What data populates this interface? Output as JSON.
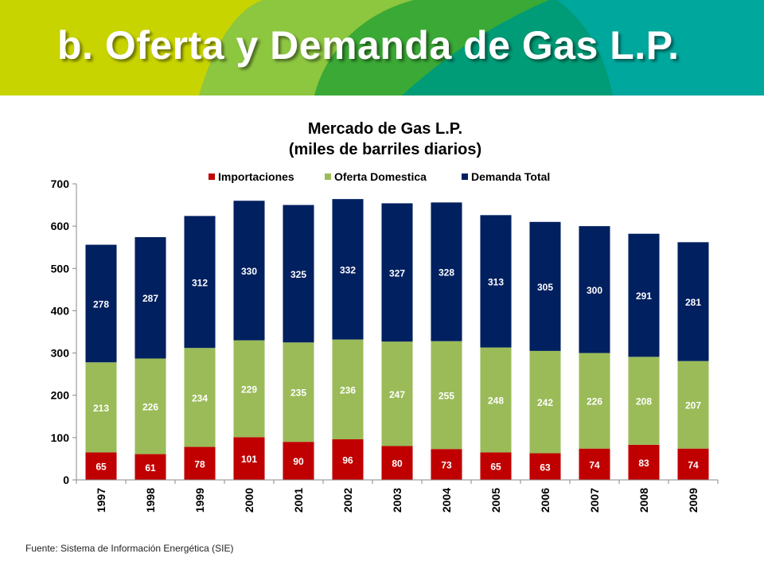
{
  "slide": {
    "title": "b. Oferta y Demanda de Gas L.P.",
    "source": "Fuente: Sistema de Información Energética (SIE)"
  },
  "colors": {
    "importaciones": "#C00000",
    "oferta": "#9BBB59",
    "demanda": "#002060",
    "banner": [
      "#C8D400",
      "#8DC63F",
      "#3AA935",
      "#009B77",
      "#00A79D"
    ]
  },
  "chart_data": {
    "type": "bar",
    "stacked": true,
    "title": "Mercado de Gas L.P.",
    "subtitle": "(miles de barriles diarios)",
    "xlabel": "",
    "ylabel": "",
    "ylim": [
      0,
      700
    ],
    "yticks": [
      0,
      100,
      200,
      300,
      400,
      500,
      600,
      700
    ],
    "legend_position": "top",
    "grid": false,
    "categories": [
      "1997",
      "1998",
      "1999",
      "2000",
      "2001",
      "2002",
      "2003",
      "2004",
      "2005",
      "2006",
      "2007",
      "2008",
      "2009"
    ],
    "series": [
      {
        "name": "Importaciones",
        "values": [
          65,
          61,
          78,
          101,
          90,
          96,
          80,
          73,
          65,
          63,
          74,
          83,
          74
        ]
      },
      {
        "name": "Oferta Domestica",
        "values": [
          213,
          226,
          234,
          229,
          235,
          236,
          247,
          255,
          248,
          242,
          226,
          208,
          207
        ]
      },
      {
        "name": "Demanda Total",
        "values": [
          278,
          287,
          312,
          330,
          325,
          332,
          327,
          328,
          313,
          305,
          300,
          291,
          281
        ]
      }
    ]
  }
}
